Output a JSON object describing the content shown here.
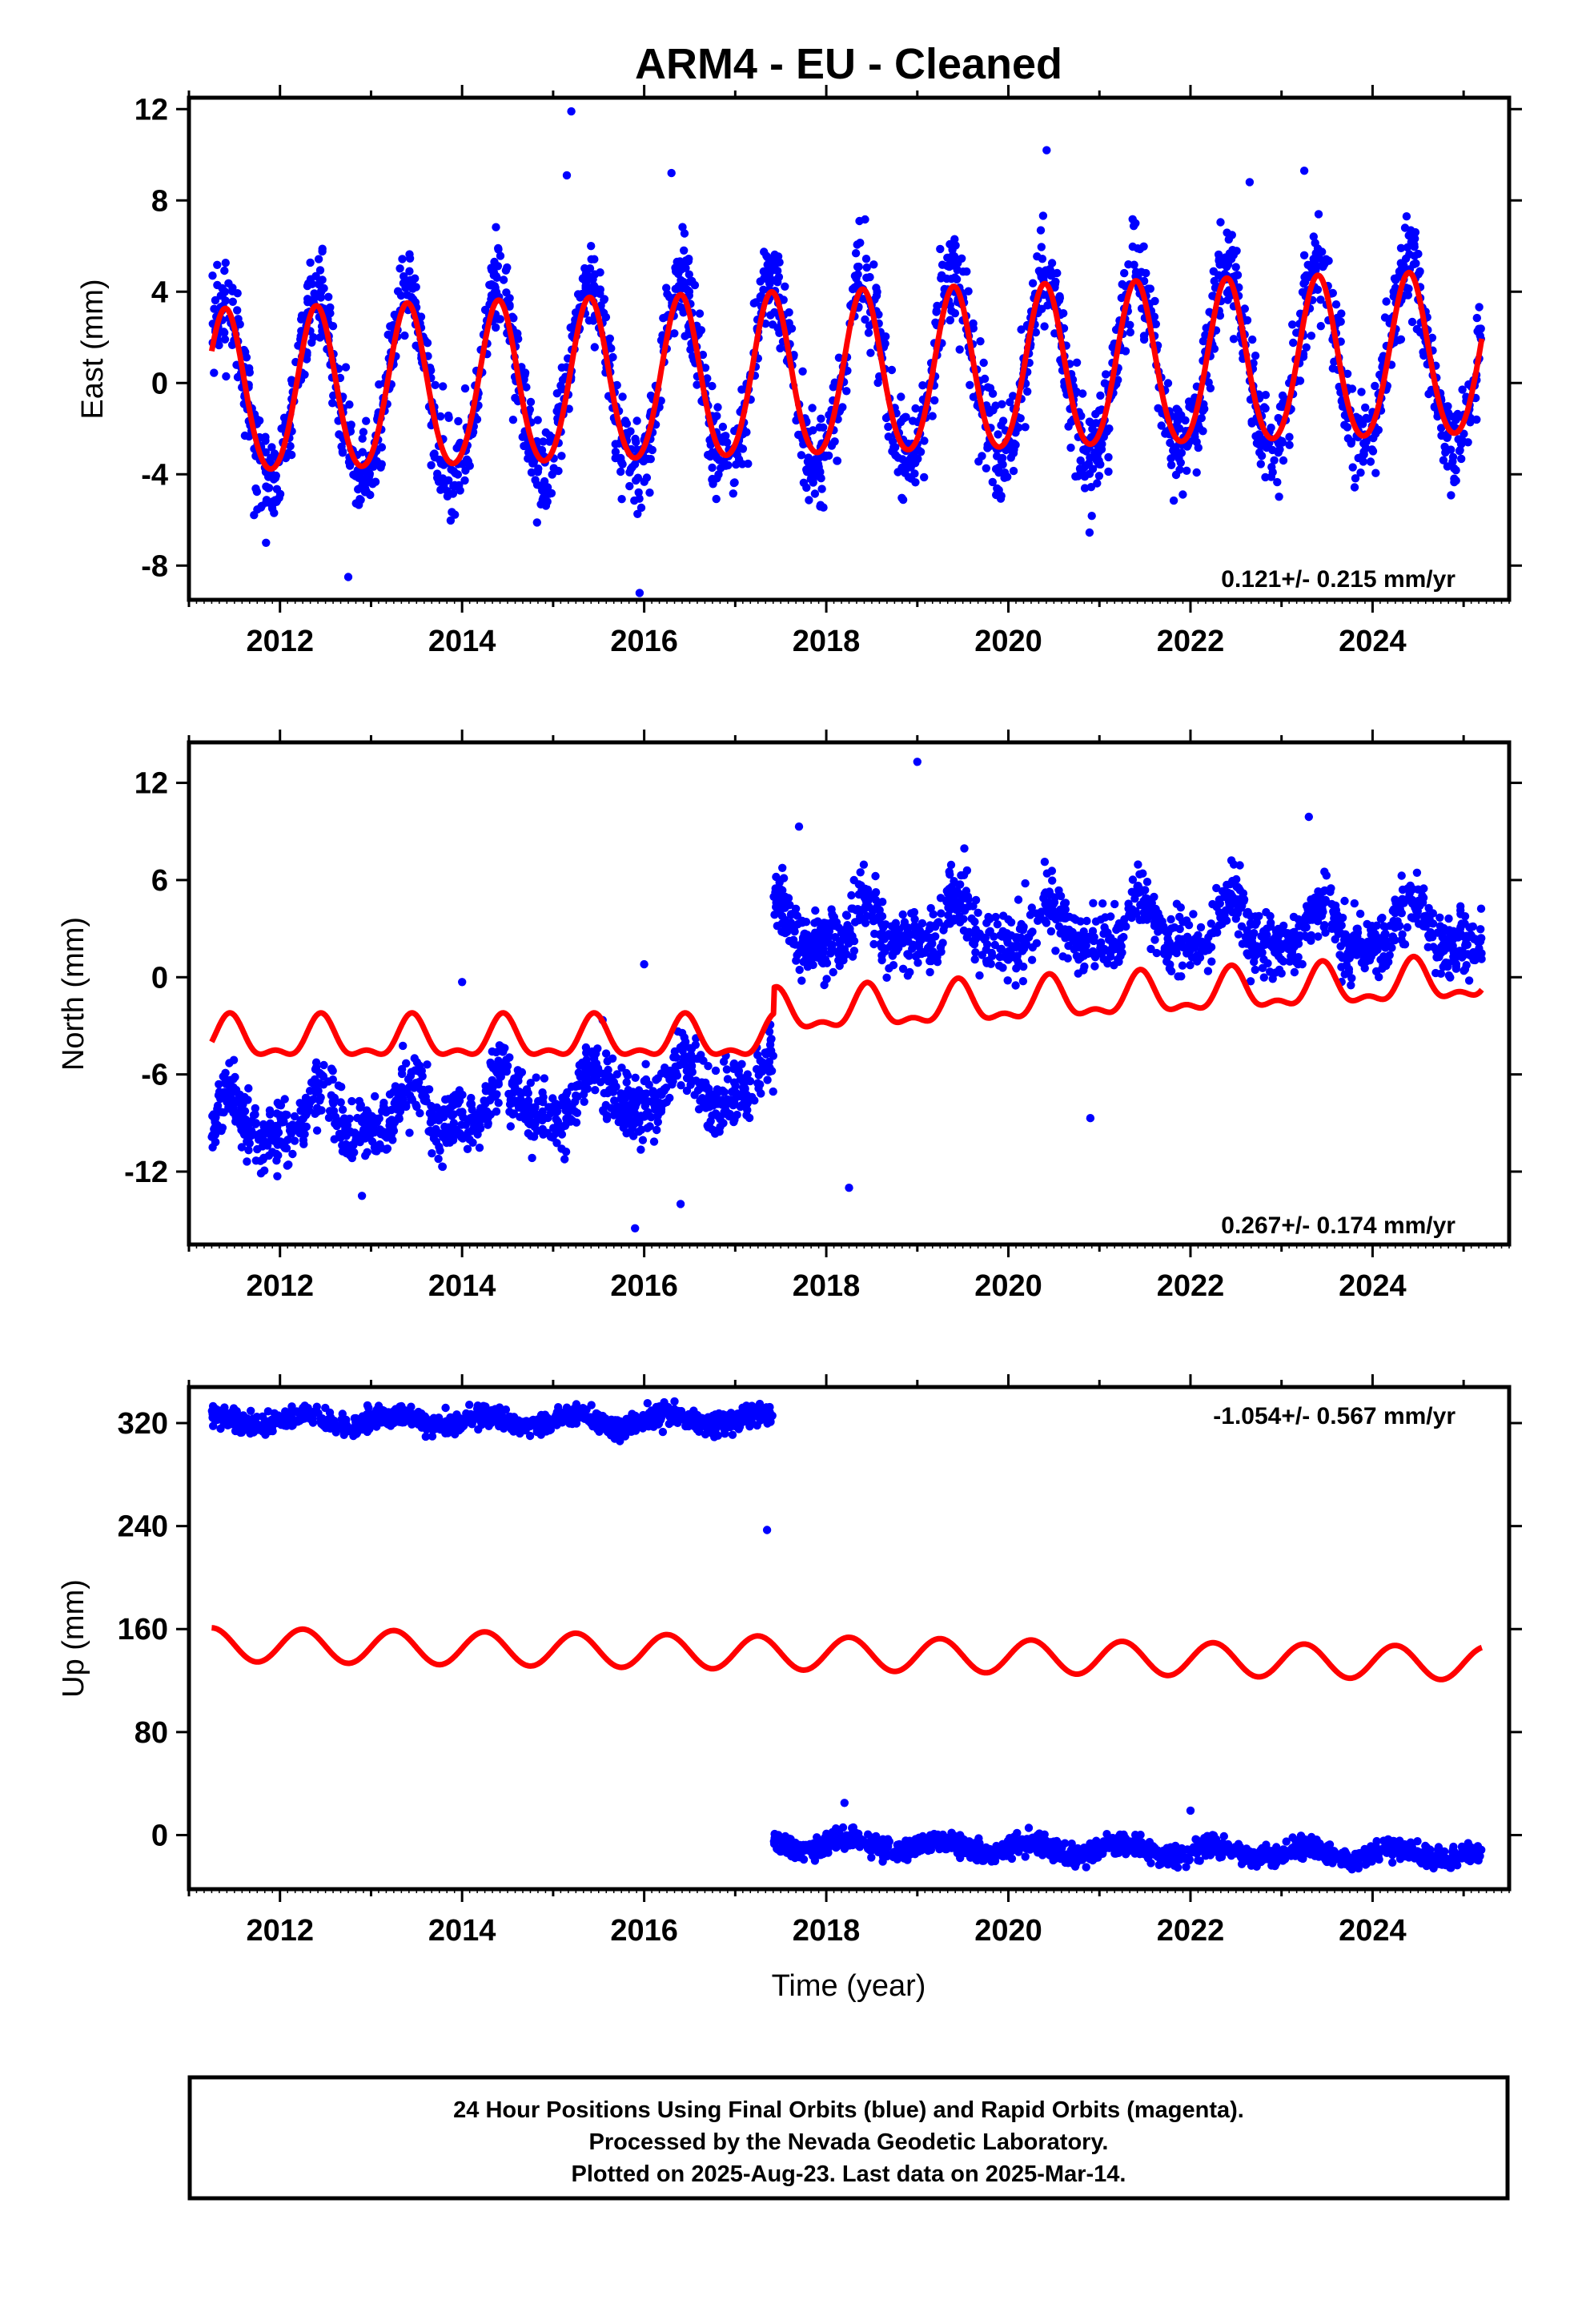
{
  "title": "ARM4  - EU - Cleaned",
  "colors": {
    "final_orbits": "#0000ff",
    "model": "#ff0000",
    "frame": "#000000"
  },
  "footer": {
    "line1": "24 Hour Positions Using Final Orbits (blue) and Rapid Orbits (magenta).",
    "line2": "Processed by the Nevada Geodetic Laboratory.",
    "line3": "Plotted on 2025-Aug-23. Last data on 2025-Mar-14."
  },
  "chart_data": [
    {
      "type": "scatter",
      "component": "east",
      "ylabel": "East (mm)",
      "xlabel": "",
      "rate_text": "0.121+/- 0.215 mm/yr",
      "rate_position": "bottom-right",
      "xlim": [
        2011.0,
        2025.5
      ],
      "ylim": [
        -9.5,
        12.5
      ],
      "xticks": [
        "2012",
        "2014",
        "2016",
        "2018",
        "2020",
        "2022",
        "2024"
      ],
      "yticks": [
        "-8",
        "-4",
        "0",
        "4",
        "8",
        "12"
      ],
      "data_start": 2011.25,
      "data_end": 2025.2,
      "points_per_year": 180,
      "segments": [
        {
          "t0": 2011.25,
          "t1": 2025.2,
          "offset": -0.6,
          "trend": 0.121,
          "noise": 1.7
        }
      ],
      "model": {
        "segments": [
          {
            "t0": 2011.25,
            "t1": 2025.2,
            "offset": -0.6,
            "trend": 0.121
          }
        ],
        "annual_amp": 3.55,
        "semiannual_amp": 0.3,
        "peak_month_fraction": 0.4
      },
      "outliers": [
        [
          2015.2,
          11.9
        ],
        [
          2015.15,
          9.1
        ],
        [
          2020.42,
          10.2
        ],
        [
          2016.3,
          9.2
        ],
        [
          2023.25,
          9.3
        ],
        [
          2015.95,
          -9.2
        ],
        [
          2012.75,
          -8.5
        ],
        [
          2022.65,
          8.8
        ]
      ]
    },
    {
      "type": "scatter",
      "component": "north",
      "ylabel": "North (mm)",
      "xlabel": "",
      "rate_text": "0.267+/- 0.174 mm/yr",
      "rate_position": "bottom-right",
      "xlim": [
        2011.0,
        2025.5
      ],
      "ylim": [
        -16.5,
        14.5
      ],
      "xticks": [
        "2012",
        "2014",
        "2016",
        "2018",
        "2020",
        "2022",
        "2024"
      ],
      "yticks": [
        "-12",
        "-6",
        "0",
        "6",
        "12"
      ],
      "data_start": 2011.25,
      "data_end": 2025.2,
      "points_per_year": 180,
      "segments": [
        {
          "t0": 2011.25,
          "t1": 2017.42,
          "offset": -9.3,
          "trend": 0.45,
          "noise": 1.7
        },
        {
          "t0": 2017.42,
          "t1": 2025.2,
          "offset": 2.9,
          "trend": 0.0,
          "noise": 1.6
        }
      ],
      "model": {
        "segments": [
          {
            "t0": 2011.25,
            "t1": 2017.42,
            "offset": -3.9,
            "trend": 0.0
          },
          {
            "t0": 2017.42,
            "t1": 2025.2,
            "offset": -2.3,
            "trend": 0.267
          }
        ],
        "annual_amp": 1.15,
        "semiannual_amp": 0.55,
        "peak_month_fraction": 0.45
      },
      "outliers": [
        [
          2019.0,
          13.3
        ],
        [
          2016.0,
          0.8
        ],
        [
          2014.0,
          -0.3
        ],
        [
          2017.7,
          9.3
        ],
        [
          2018.25,
          -13.0
        ],
        [
          2020.9,
          -8.7
        ],
        [
          2015.9,
          -15.5
        ],
        [
          2016.4,
          -14.0
        ],
        [
          2023.3,
          9.9
        ],
        [
          2012.9,
          -13.5
        ]
      ]
    },
    {
      "type": "scatter",
      "component": "up",
      "ylabel": "Up (mm)",
      "xlabel": "Time (year)",
      "rate_text": "-1.054+/- 0.567 mm/yr",
      "rate_position": "top-right",
      "xlim": [
        2011.0,
        2025.5
      ],
      "ylim": [
        -42,
        348
      ],
      "xticks": [
        "2012",
        "2014",
        "2016",
        "2018",
        "2020",
        "2022",
        "2024"
      ],
      "yticks": [
        "0",
        "80",
        "160",
        "240",
        "320"
      ],
      "data_start": 2011.25,
      "data_end": 2025.2,
      "points_per_year": 180,
      "segments": [
        {
          "t0": 2011.25,
          "t1": 2017.42,
          "offset": 322,
          "trend": 0.0,
          "noise": 6.5
        },
        {
          "t0": 2017.42,
          "t1": 2025.2,
          "offset": -7,
          "trend": -1.1,
          "noise": 6.5
        }
      ],
      "model": {
        "segments": [
          {
            "t0": 2011.25,
            "t1": 2025.2,
            "offset": 148,
            "trend": -1.054
          }
        ],
        "annual_amp": 13.0,
        "semiannual_amp": 0.0,
        "peak_month_fraction": 0.25
      },
      "outliers": [
        [
          2017.35,
          237
        ],
        [
          2018.2,
          25
        ],
        [
          2022.0,
          19
        ]
      ]
    }
  ]
}
